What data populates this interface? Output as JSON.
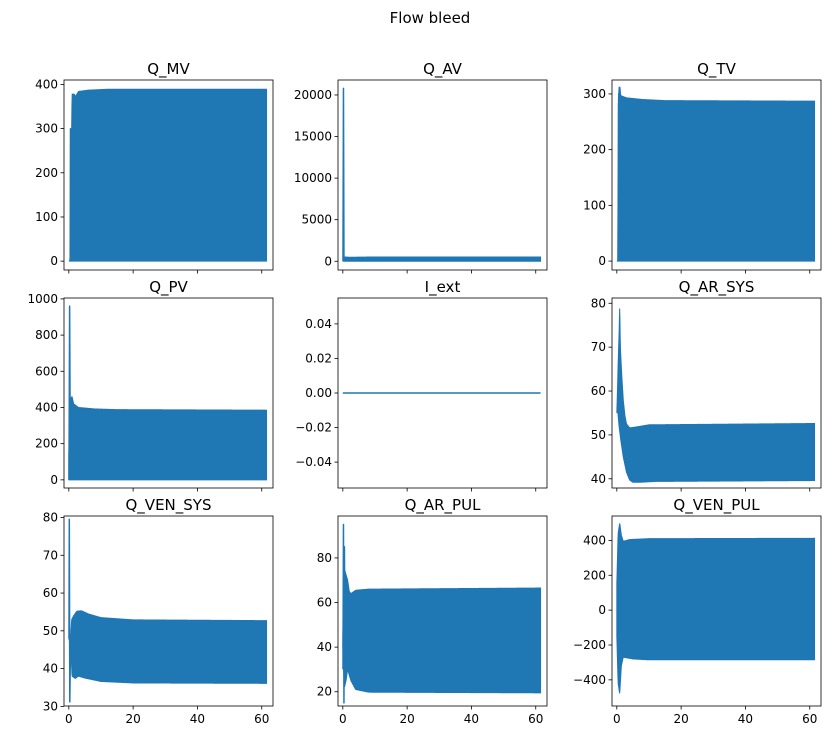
{
  "figure_title": "Flow bleed",
  "colors": {
    "series": "#1f77b4",
    "axes": "#000000",
    "background": "#ffffff"
  },
  "chart_data": [
    {
      "type": "line",
      "title": "Q_MV",
      "xlim": [
        -1.5,
        63.5
      ],
      "ylim": [
        -20,
        410
      ],
      "xticks": [
        0,
        20,
        40,
        60
      ],
      "xtick_labels": [],
      "yticks": [
        0,
        100,
        200,
        300,
        400
      ],
      "ytick_labels": [
        "0",
        "100",
        "200",
        "300",
        "400"
      ],
      "envelope": {
        "x_start": 0,
        "x_end": 61.5,
        "upper": [
          [
            0,
            0
          ],
          [
            0.35,
            0
          ],
          [
            0.4,
            300
          ],
          [
            0.9,
            300
          ],
          [
            1.0,
            378
          ],
          [
            1.7,
            378
          ],
          [
            2.0,
            372
          ],
          [
            3.0,
            384
          ],
          [
            6,
            387
          ],
          [
            12,
            389
          ],
          [
            61.5,
            389
          ]
        ],
        "lower": [
          [
            0,
            0
          ],
          [
            61.5,
            0
          ]
        ]
      },
      "lines": []
    },
    {
      "type": "line",
      "title": "Q_AV",
      "xlim": [
        -1.5,
        63.5
      ],
      "ylim": [
        -1050,
        21800
      ],
      "xticks": [
        0,
        20,
        40,
        60
      ],
      "xtick_labels": [],
      "yticks": [
        0,
        5000,
        10000,
        15000,
        20000
      ],
      "ytick_labels": [
        "0",
        "5000",
        "10000",
        "15000",
        "20000"
      ],
      "envelope": {
        "x_start": 0,
        "x_end": 61.5,
        "upper": [
          [
            0,
            0
          ],
          [
            0.6,
            0
          ],
          [
            0.7,
            520
          ],
          [
            2,
            480
          ],
          [
            10,
            520
          ],
          [
            61.5,
            520
          ]
        ],
        "lower": [
          [
            0,
            0
          ],
          [
            61.5,
            0
          ]
        ]
      },
      "lines": [
        {
          "name": "initial spike",
          "points": [
            [
              0.05,
              0
            ],
            [
              0.2,
              20800
            ],
            [
              0.35,
              0
            ]
          ]
        }
      ]
    },
    {
      "type": "line",
      "title": "Q_TV",
      "xlim": [
        -1.5,
        63.5
      ],
      "ylim": [
        -16,
        325
      ],
      "xticks": [
        0,
        20,
        40,
        60
      ],
      "xtick_labels": [],
      "yticks": [
        0,
        100,
        200,
        300
      ],
      "ytick_labels": [
        "0",
        "100",
        "200",
        "300"
      ],
      "envelope": {
        "x_start": 0,
        "x_end": 61.5,
        "upper": [
          [
            0,
            0
          ],
          [
            0.3,
            0
          ],
          [
            0.45,
            300
          ],
          [
            0.6,
            300
          ],
          [
            0.7,
            312
          ],
          [
            1.0,
            312
          ],
          [
            1.2,
            297
          ],
          [
            3,
            293
          ],
          [
            8,
            290
          ],
          [
            15,
            288
          ],
          [
            61.5,
            287
          ]
        ],
        "lower": [
          [
            0,
            0
          ],
          [
            61.5,
            0
          ]
        ]
      },
      "lines": []
    },
    {
      "type": "line",
      "title": "Q_PV",
      "xlim": [
        -1.5,
        63.5
      ],
      "ylim": [
        -45,
        1005
      ],
      "xticks": [
        0,
        20,
        40,
        60
      ],
      "xtick_labels": [],
      "yticks": [
        0,
        200,
        400,
        600,
        800,
        1000
      ],
      "ytick_labels": [
        "0",
        "200",
        "400",
        "600",
        "800",
        "1000"
      ],
      "envelope": {
        "x_start": 0,
        "x_end": 61.5,
        "upper": [
          [
            0,
            150
          ],
          [
            0.5,
            150
          ],
          [
            0.6,
            450
          ],
          [
            1.0,
            460
          ],
          [
            1.5,
            420
          ],
          [
            3,
            400
          ],
          [
            8,
            392
          ],
          [
            15,
            388
          ],
          [
            61.5,
            385
          ]
        ],
        "lower": [
          [
            0,
            0
          ],
          [
            61.5,
            0
          ]
        ]
      },
      "lines": [
        {
          "name": "initial spike",
          "points": [
            [
              0.05,
              0
            ],
            [
              0.25,
              960
            ],
            [
              0.45,
              120
            ]
          ]
        }
      ]
    },
    {
      "type": "line",
      "title": "I_ext",
      "xlim": [
        -1.5,
        63.5
      ],
      "ylim": [
        -0.055,
        0.055
      ],
      "xticks": [
        0,
        20,
        40,
        60
      ],
      "xtick_labels": [],
      "yticks": [
        -0.04,
        -0.02,
        0.0,
        0.02,
        0.04
      ],
      "ytick_labels": [
        "−0.04",
        "−0.02",
        "0.00",
        "0.02",
        "0.04"
      ],
      "envelope": null,
      "lines": [
        {
          "name": "zero line",
          "points": [
            [
              0,
              0
            ],
            [
              61.5,
              0
            ]
          ]
        }
      ]
    },
    {
      "type": "line",
      "title": "Q_AR_SYS",
      "xlim": [
        -1.5,
        63.5
      ],
      "ylim": [
        37.9,
        81.2
      ],
      "xticks": [
        0,
        20,
        40,
        60
      ],
      "xtick_labels": [],
      "yticks": [
        40,
        50,
        60,
        70,
        80
      ],
      "ytick_labels": [
        "40",
        "50",
        "60",
        "70",
        "80"
      ],
      "envelope": {
        "x_start": 0,
        "x_end": 61.5,
        "upper": [
          [
            0,
            55
          ],
          [
            0.2,
            60
          ],
          [
            0.4,
            66
          ],
          [
            0.7,
            73
          ],
          [
            0.9,
            79.5
          ],
          [
            1.1,
            70
          ],
          [
            1.5,
            64
          ],
          [
            2,
            58
          ],
          [
            2.5,
            54.5
          ],
          [
            3,
            52.5
          ],
          [
            4,
            51.6
          ],
          [
            6,
            51.8
          ],
          [
            10,
            52.3
          ],
          [
            61.5,
            52.6
          ]
        ],
        "lower": [
          [
            0,
            55
          ],
          [
            0.2,
            56
          ],
          [
            0.4,
            54.5
          ],
          [
            0.7,
            52
          ],
          [
            1.2,
            49
          ],
          [
            2,
            45
          ],
          [
            3,
            41.5
          ],
          [
            4,
            39.7
          ],
          [
            5,
            39.2
          ],
          [
            7,
            39.2
          ],
          [
            12,
            39.4
          ],
          [
            61.5,
            39.6
          ]
        ]
      },
      "lines": []
    },
    {
      "type": "line",
      "title": "Q_VEN_SYS",
      "xlim": [
        -1.5,
        63.5
      ],
      "ylim": [
        30.1,
        80.4
      ],
      "xticks": [
        0,
        20,
        40,
        60
      ],
      "xtick_labels": [
        "0",
        "20",
        "40",
        "60"
      ],
      "yticks": [
        30,
        40,
        50,
        60,
        70,
        80
      ],
      "ytick_labels": [
        "30",
        "40",
        "50",
        "60",
        "70",
        "80"
      ],
      "envelope": {
        "x_start": 0,
        "x_end": 61.5,
        "upper": [
          [
            0,
            48
          ],
          [
            0.6,
            49
          ],
          [
            0.9,
            53
          ],
          [
            1.5,
            54
          ],
          [
            2.5,
            55.2
          ],
          [
            4,
            55.3
          ],
          [
            6,
            54.5
          ],
          [
            10,
            53.5
          ],
          [
            20,
            52.9
          ],
          [
            61.5,
            52.7
          ]
        ],
        "lower": [
          [
            0,
            48
          ],
          [
            0.6,
            46
          ],
          [
            1.0,
            38
          ],
          [
            2,
            37.4
          ],
          [
            3,
            38.0
          ],
          [
            5,
            37.5
          ],
          [
            10,
            36.6
          ],
          [
            20,
            36.2
          ],
          [
            61.5,
            36.1
          ]
        ]
      },
      "lines": [
        {
          "name": "initial spike",
          "points": [
            [
              0.05,
              48
            ],
            [
              0.15,
              79.5
            ],
            [
              0.3,
              31.2
            ],
            [
              0.55,
              48
            ]
          ]
        }
      ]
    },
    {
      "type": "line",
      "title": "Q_AR_PUL",
      "xlim": [
        -1.5,
        63.5
      ],
      "ylim": [
        13.6,
        98.8
      ],
      "xticks": [
        0,
        20,
        40,
        60
      ],
      "xtick_labels": [
        "0",
        "20",
        "40",
        "60"
      ],
      "yticks": [
        20,
        40,
        60,
        80
      ],
      "ytick_labels": [
        "20",
        "40",
        "60",
        "80"
      ],
      "envelope": {
        "x_start": 0,
        "x_end": 61.5,
        "upper": [
          [
            0,
            45
          ],
          [
            0.5,
            75
          ],
          [
            1.5,
            70
          ],
          [
            2,
            65
          ],
          [
            2.5,
            64
          ],
          [
            4,
            65.5
          ],
          [
            8,
            66
          ],
          [
            61.5,
            66.5
          ]
        ],
        "lower": [
          [
            0,
            40
          ],
          [
            0.5,
            22
          ],
          [
            1,
            25
          ],
          [
            1.5,
            30
          ],
          [
            2.5,
            25
          ],
          [
            4,
            21
          ],
          [
            8,
            19.8
          ],
          [
            61.5,
            19.5
          ]
        ]
      },
      "lines": [
        {
          "name": "initial spike",
          "points": [
            [
              0.05,
              30
            ],
            [
              0.2,
              95
            ],
            [
              0.35,
              15
            ],
            [
              0.5,
              85
            ],
            [
              0.7,
              35
            ]
          ]
        }
      ]
    },
    {
      "type": "line",
      "title": "Q_VEN_PUL",
      "xlim": [
        -1.5,
        63.5
      ],
      "ylim": [
        -550,
        540
      ],
      "xticks": [
        0,
        20,
        40,
        60
      ],
      "xtick_labels": [
        "0",
        "20",
        "40",
        "60"
      ],
      "yticks": [
        -400,
        -200,
        0,
        200,
        400
      ],
      "ytick_labels": [
        "−400",
        "−200",
        "0",
        "200",
        "400"
      ],
      "envelope": {
        "x_start": 0,
        "x_end": 61.5,
        "upper": [
          [
            0,
            150
          ],
          [
            0.4,
            440
          ],
          [
            0.9,
            500
          ],
          [
            1.4,
            430
          ],
          [
            2,
            395
          ],
          [
            4,
            405
          ],
          [
            10,
            410
          ],
          [
            61.5,
            412
          ]
        ],
        "lower": [
          [
            0,
            -150
          ],
          [
            0.4,
            -420
          ],
          [
            0.9,
            -480
          ],
          [
            1.4,
            -320
          ],
          [
            2,
            -270
          ],
          [
            5,
            -280
          ],
          [
            10,
            -285
          ],
          [
            61.5,
            -285
          ]
        ]
      },
      "lines": []
    }
  ]
}
